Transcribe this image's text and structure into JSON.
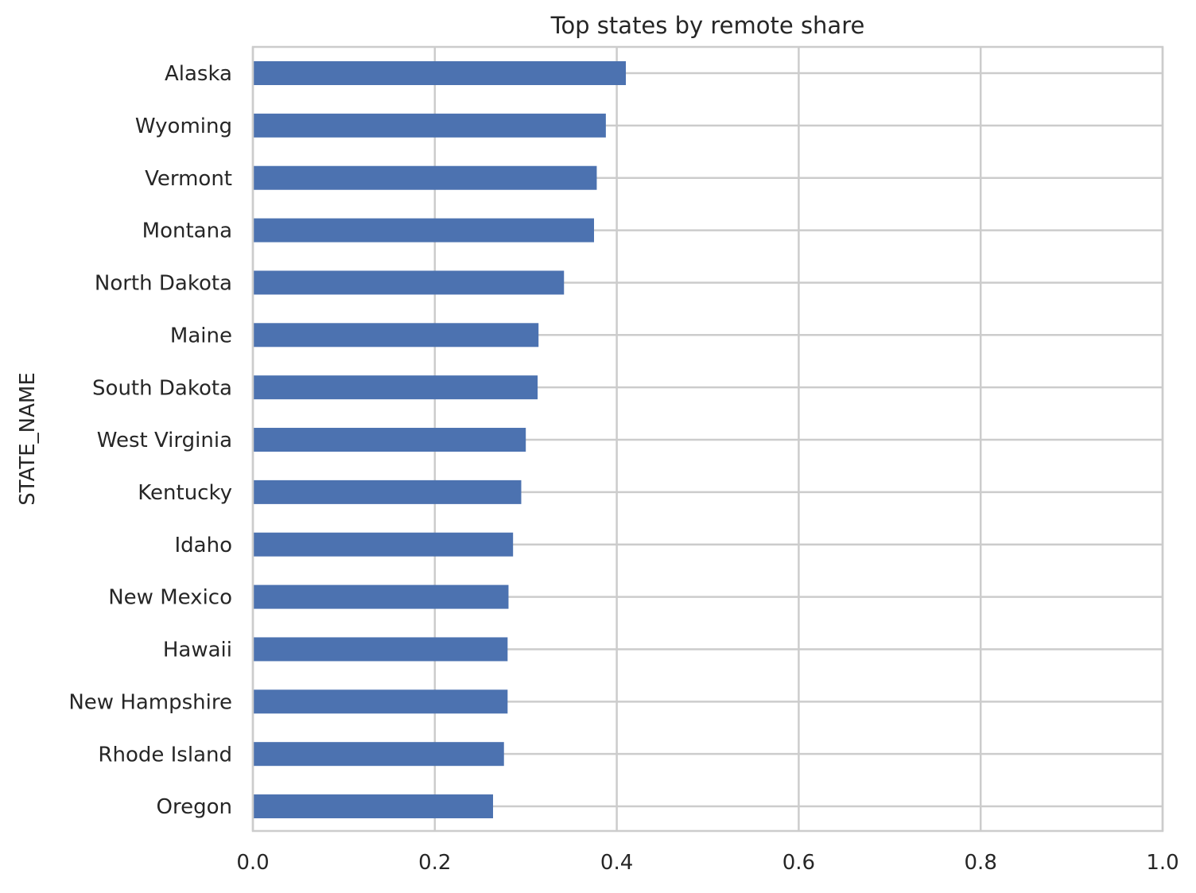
{
  "chart_data": {
    "type": "bar",
    "orientation": "horizontal",
    "title": "Top states by remote share",
    "xlabel": "",
    "ylabel": "STATE_NAME",
    "xlim": [
      0.0,
      1.0
    ],
    "xticks": [
      "0.0",
      "0.2",
      "0.4",
      "0.6",
      "0.8",
      "1.0"
    ],
    "grid": true,
    "categories": [
      "Alaska",
      "Wyoming",
      "Vermont",
      "Montana",
      "North Dakota",
      "Maine",
      "South Dakota",
      "West Virginia",
      "Kentucky",
      "Idaho",
      "New Mexico",
      "Hawaii",
      "New Hampshire",
      "Rhode Island",
      "Oregon"
    ],
    "values": [
      0.41,
      0.388,
      0.378,
      0.375,
      0.342,
      0.314,
      0.313,
      0.3,
      0.295,
      0.286,
      0.281,
      0.28,
      0.28,
      0.276,
      0.264
    ],
    "colors": {
      "bar": "#4c72b0",
      "grid": "#cccccc",
      "axes_edge": "#cccccc",
      "text": "#262626"
    }
  }
}
